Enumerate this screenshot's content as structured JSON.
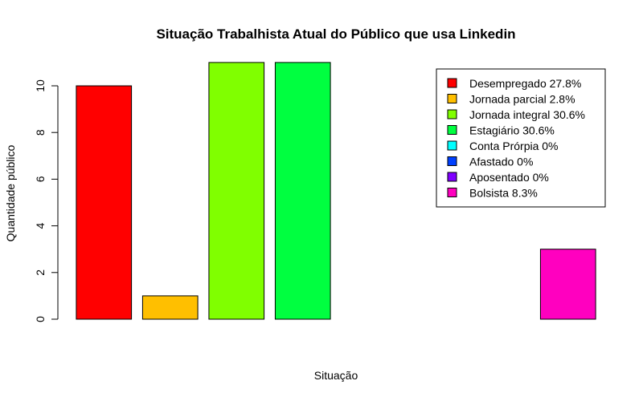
{
  "chart_data": {
    "type": "bar",
    "title": "Situação Trabalhista Atual do Público que usa Linkedin",
    "xlabel": "Situação",
    "ylabel": "Quantidade público",
    "categories": [
      "Desempregado",
      "Jornada parcial",
      "Jornada integral",
      "Estagiário",
      "Conta Prórpia",
      "Afastado",
      "Aposentado",
      "Bolsista"
    ],
    "values": [
      10,
      1,
      11,
      11,
      0,
      0,
      0,
      3
    ],
    "colors": [
      "#FF0000",
      "#FFBF00",
      "#80FF00",
      "#00FF40",
      "#00FFFF",
      "#0040FF",
      "#8000FF",
      "#FF00BF"
    ],
    "legend": [
      "Desempregado 27.8%",
      "Jornada parcial 2.8%",
      "Jornada integral 30.6%",
      "Estagiário 30.6%",
      "Conta Prórpia 0%",
      "Afastado 0%",
      "Aposentado 0%",
      "Bolsista 8.3%"
    ],
    "legend_position": "top-right",
    "yticks": [
      0,
      2,
      4,
      6,
      8,
      10
    ],
    "ylim": [
      0,
      11.44
    ],
    "grid": false
  }
}
